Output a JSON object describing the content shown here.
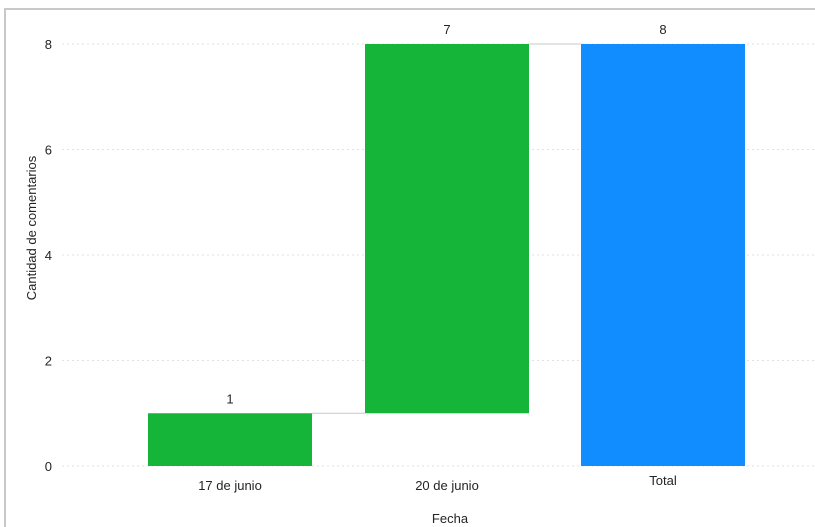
{
  "chart_data": {
    "type": "bar",
    "subtype": "waterfall",
    "categories": [
      "17 de junio",
      "20 de junio",
      "Total"
    ],
    "values": [
      1,
      7,
      8
    ],
    "data_labels": [
      "1",
      "7",
      "8"
    ],
    "xlabel": "Fecha",
    "ylabel": "Cantidad de comentarios",
    "ylim": [
      0,
      8
    ],
    "yticks": [
      "0",
      "2",
      "4",
      "6",
      "8"
    ],
    "grid": true,
    "colors": {
      "increase": "#15b53a",
      "total": "#118dff",
      "grid": "#e1e1e1",
      "connector": "#c8c8c8"
    }
  }
}
